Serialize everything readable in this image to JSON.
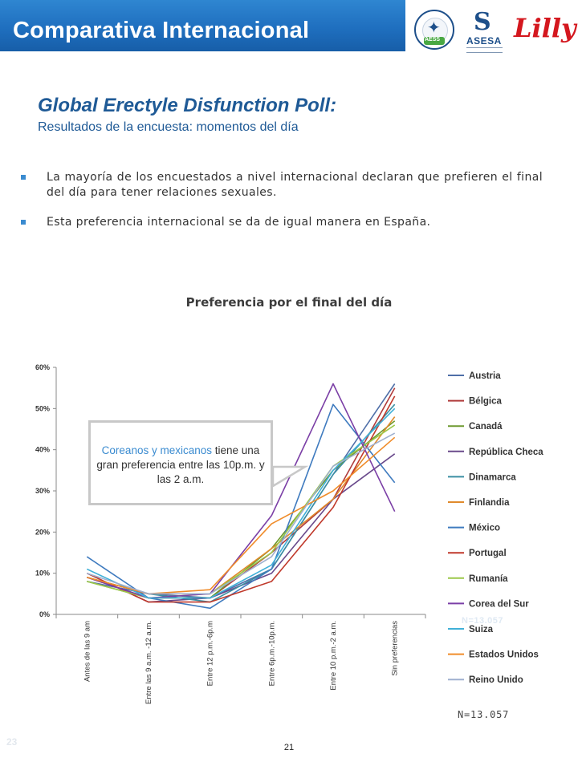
{
  "header": {
    "title": "Comparativa Internacional"
  },
  "logos": {
    "aess_text": "AESS",
    "asesa_name": "ASESA",
    "lilly_name": "Lilly"
  },
  "poll": {
    "title": "Global Erectyle Disfunction Poll:",
    "subtitle": "Resultados de la encuesta: momentos del día"
  },
  "bullets": [
    "La mayoría de los encuestados a nivel internacional declaran que prefieren el final del día para tener relaciones sexuales.",
    "Esta preferencia internacional se da de igual manera en España."
  ],
  "callout": {
    "highlight": "Coreanos y mexicanos",
    "text": " tiene una gran preferencia entre las 10p.m. y las 2 a.m."
  },
  "n_ghost": "N=13.057",
  "n_label": "N=13.057",
  "ghost_page_num": "23",
  "page_number": "21",
  "chart_data": {
    "type": "line",
    "title": "Preferencia por el final del día",
    "categories": [
      "Antes de las 9 am",
      "Entre las 9 a.m. -12 a.m.",
      "Entre 12 p.m.-6p.m",
      "Entre 6p.m.-10p.m.",
      "Entre 10 p.m.-2 a.m.",
      "Sin preferencias"
    ],
    "y_ticks": [
      "0%",
      "10%",
      "20%",
      "30%",
      "40%",
      "50%",
      "60%"
    ],
    "ylim": [
      0,
      60
    ],
    "legend_position": "right",
    "grid": false,
    "series": [
      {
        "name": "Austria",
        "color": "#4f6fa8",
        "values": [
          8,
          5,
          4,
          11,
          34,
          56
        ]
      },
      {
        "name": "Bélgica",
        "color": "#b03c3c",
        "values": [
          9,
          4,
          4,
          15,
          28,
          55
        ]
      },
      {
        "name": "Canadá",
        "color": "#6f9a30",
        "values": [
          8,
          4,
          4,
          16,
          35,
          47
        ]
      },
      {
        "name": "República Checa",
        "color": "#6a4a8c",
        "values": [
          10,
          3,
          4,
          10,
          28,
          39
        ]
      },
      {
        "name": "Dinamarca",
        "color": "#3b8fa3",
        "values": [
          9,
          5,
          3,
          11,
          34,
          51
        ]
      },
      {
        "name": "Finlandia",
        "color": "#e08a2c",
        "values": [
          9,
          5,
          5,
          16,
          28,
          48
        ]
      },
      {
        "name": "México",
        "color": "#3f7bbf",
        "values": [
          14,
          4,
          1.5,
          11,
          51,
          32
        ]
      },
      {
        "name": "Portugal",
        "color": "#c0392b",
        "values": [
          10,
          3,
          3,
          8,
          26,
          53
        ]
      },
      {
        "name": "Rumanía",
        "color": "#9cc84a",
        "values": [
          8,
          4,
          5,
          15,
          36,
          46
        ]
      },
      {
        "name": "Corea del Sur",
        "color": "#7b3fa6",
        "values": [
          9,
          4,
          5,
          24,
          56,
          25
        ]
      },
      {
        "name": "Suiza",
        "color": "#40b0d8",
        "values": [
          11,
          4,
          4,
          12,
          35,
          50
        ]
      },
      {
        "name": "Estados Unidos",
        "color": "#f08c2a",
        "values": [
          9,
          5,
          6,
          22,
          30,
          43
        ]
      },
      {
        "name": "Reino Unido",
        "color": "#9fb0cf",
        "values": [
          10,
          5,
          5,
          14,
          36,
          44
        ]
      }
    ]
  }
}
